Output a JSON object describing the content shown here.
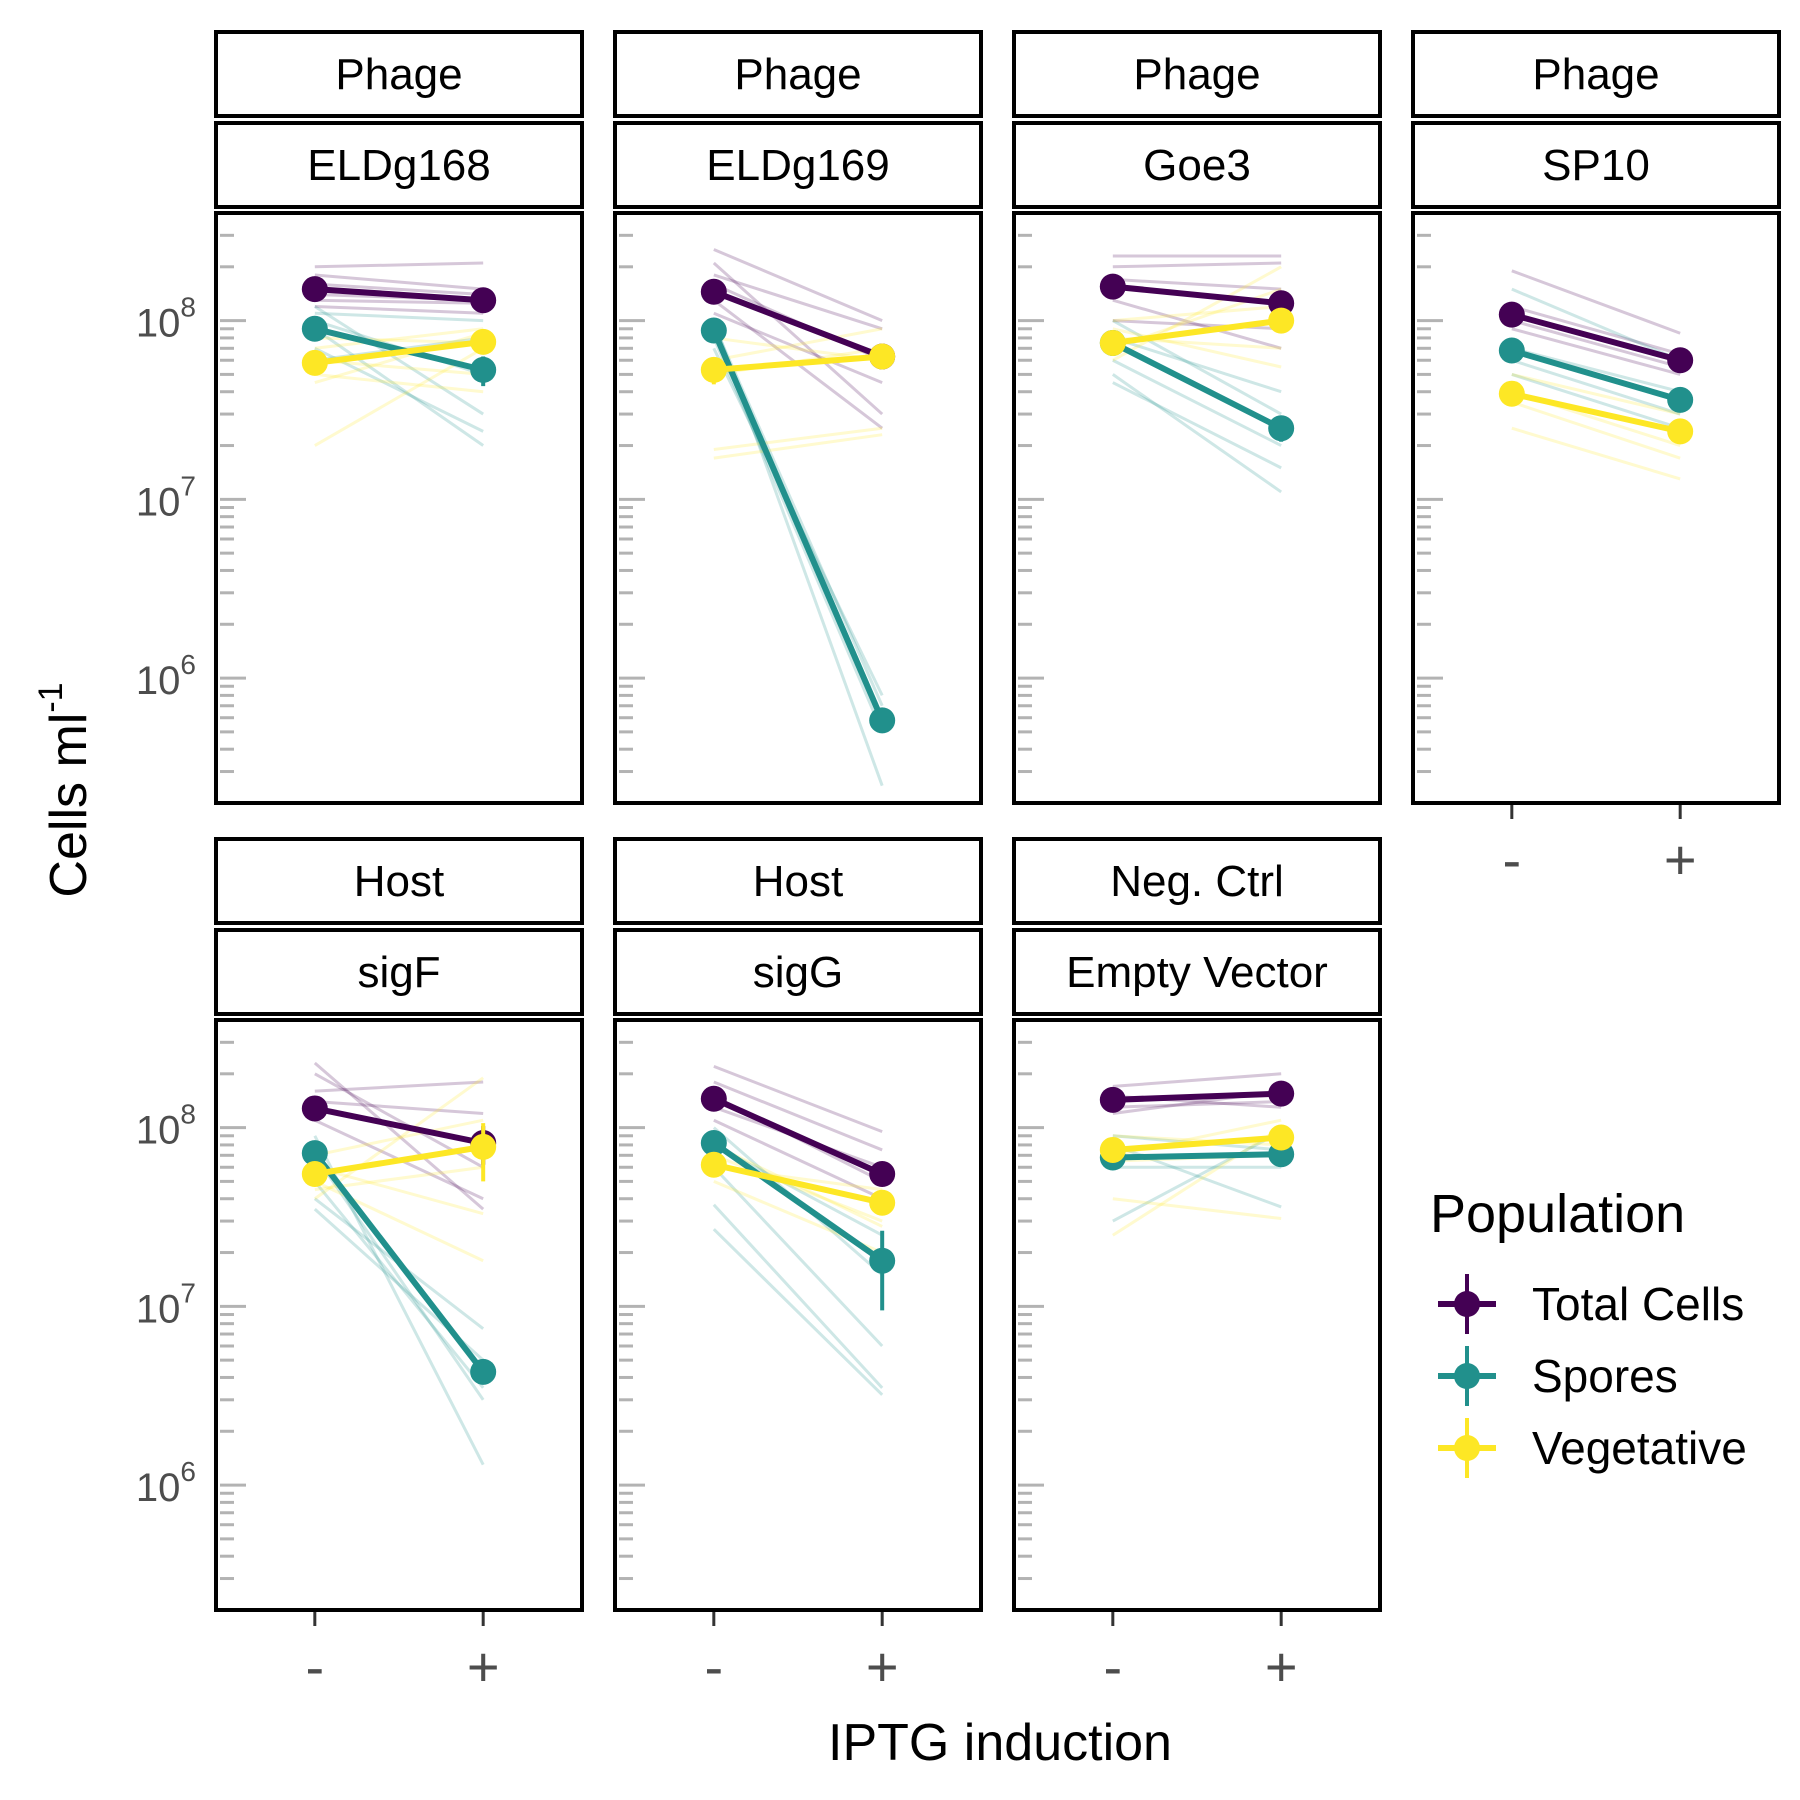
{
  "chart_data": {
    "type": "line",
    "y_scale": "log10",
    "ylim": [
      200000,
      400000000
    ],
    "y_ticks": [
      {
        "value": 1000000,
        "base": "10",
        "exp": "6"
      },
      {
        "value": 10000000,
        "base": "10",
        "exp": "7"
      },
      {
        "value": 100000000,
        "base": "10",
        "exp": "8"
      }
    ],
    "x_categories": [
      "-",
      "+"
    ],
    "xlabel": "IPTG induction",
    "ylabel": {
      "base": "Cells ml",
      "sup": "-1"
    },
    "legend": {
      "title": "Population",
      "position": "right",
      "entries": [
        {
          "name": "Total Cells",
          "color": "#440154"
        },
        {
          "name": "Spores",
          "color": "#21908C"
        },
        {
          "name": "Vegetative",
          "color": "#FDE725"
        }
      ]
    },
    "panels": [
      {
        "group": "Phage",
        "label": "ELDg168",
        "series": [
          {
            "name": "Total Cells",
            "values": [
              150000000,
              130000000
            ],
            "err": [
              0,
              0
            ]
          },
          {
            "name": "Spores",
            "values": [
              90000000,
              53000000
            ],
            "err": [
              0,
              10000000
            ]
          },
          {
            "name": "Vegetative",
            "values": [
              58000000,
              76000000
            ],
            "err": [
              0,
              8000000
            ]
          }
        ],
        "replicates": [
          {
            "series": "Total Cells",
            "lines": [
              [
                200000000,
                210000000
              ],
              [
                180000000,
                150000000
              ],
              [
                140000000,
                130000000
              ],
              [
                120000000,
                110000000
              ],
              [
                160000000,
                140000000
              ],
              [
                130000000,
                125000000
              ]
            ]
          },
          {
            "series": "Spores",
            "lines": [
              [
                120000000,
                30000000
              ],
              [
                90000000,
                20000000
              ],
              [
                70000000,
                24000000
              ],
              [
                100000000,
                50000000
              ],
              [
                110000000,
                100000000
              ],
              [
                60000000,
                80000000
              ]
            ]
          },
          {
            "series": "Vegetative",
            "lines": [
              [
                20000000,
                70000000
              ],
              [
                45000000,
                85000000
              ],
              [
                60000000,
                50000000
              ],
              [
                70000000,
                90000000
              ],
              [
                50000000,
                40000000
              ],
              [
                80000000,
                75000000
              ]
            ]
          }
        ]
      },
      {
        "group": "Phage",
        "label": "ELDg169",
        "series": [
          {
            "name": "Total Cells",
            "values": [
              145000000,
              63000000
            ],
            "err": [
              0,
              5000000
            ]
          },
          {
            "name": "Spores",
            "values": [
              88000000,
              580000
            ],
            "err": [
              0,
              0
            ]
          },
          {
            "name": "Vegetative",
            "values": [
              53000000,
              63000000
            ],
            "err": [
              9000000,
              4000000
            ]
          }
        ],
        "replicates": [
          {
            "series": "Total Cells",
            "lines": [
              [
                250000000,
                100000000
              ],
              [
                210000000,
                30000000
              ],
              [
                160000000,
                60000000
              ],
              [
                130000000,
                25000000
              ],
              [
                180000000,
                90000000
              ],
              [
                110000000,
                45000000
              ]
            ]
          },
          {
            "series": "Spores",
            "lines": [
              [
                100000000,
                250000
              ],
              [
                80000000,
                500000
              ],
              [
                95000000,
                700000
              ],
              [
                70000000,
                800000
              ],
              [
                90000000,
                600000
              ]
            ]
          },
          {
            "series": "Vegetative",
            "lines": [
              [
                19000000,
                25000000
              ],
              [
                17000000,
                23000000
              ],
              [
                60000000,
                90000000
              ],
              [
                50000000,
                70000000
              ],
              [
                80000000,
                60000000
              ]
            ]
          }
        ]
      },
      {
        "group": "Phage",
        "label": "Goe3",
        "series": [
          {
            "name": "Total Cells",
            "values": [
              155000000,
              125000000
            ],
            "err": [
              0,
              0
            ]
          },
          {
            "name": "Spores",
            "values": [
              75000000,
              25000000
            ],
            "err": [
              0,
              4000000
            ]
          },
          {
            "name": "Vegetative",
            "values": [
              75000000,
              100000000
            ],
            "err": [
              0,
              0
            ]
          }
        ],
        "replicates": [
          {
            "series": "Total Cells",
            "lines": [
              [
                230000000,
                230000000
              ],
              [
                200000000,
                210000000
              ],
              [
                130000000,
                70000000
              ],
              [
                100000000,
                90000000
              ],
              [
                170000000,
                150000000
              ]
            ]
          },
          {
            "series": "Spores",
            "lines": [
              [
                50000000,
                11000000
              ],
              [
                45000000,
                15000000
              ],
              [
                100000000,
                30000000
              ],
              [
                80000000,
                40000000
              ],
              [
                60000000,
                20000000
              ]
            ]
          },
          {
            "series": "Vegetative",
            "lines": [
              [
                60000000,
                200000000
              ],
              [
                70000000,
                150000000
              ],
              [
                90000000,
                55000000
              ],
              [
                80000000,
                70000000
              ],
              [
                100000000,
                120000000
              ]
            ]
          }
        ]
      },
      {
        "group": "Phage",
        "label": "SP10",
        "series": [
          {
            "name": "Total Cells",
            "values": [
              108000000,
              60000000
            ],
            "err": [
              0,
              0
            ]
          },
          {
            "name": "Spores",
            "values": [
              68000000,
              36000000
            ],
            "err": [
              0,
              0
            ]
          },
          {
            "name": "Vegetative",
            "values": [
              39000000,
              24000000
            ],
            "err": [
              0,
              0
            ]
          }
        ],
        "replicates": [
          {
            "series": "Total Cells",
            "lines": [
              [
                190000000,
                85000000
              ],
              [
                120000000,
                65000000
              ],
              [
                100000000,
                55000000
              ],
              [
                90000000,
                50000000
              ]
            ]
          },
          {
            "series": "Spores",
            "lines": [
              [
                150000000,
                60000000
              ],
              [
                70000000,
                40000000
              ],
              [
                60000000,
                30000000
              ],
              [
                50000000,
                25000000
              ]
            ]
          },
          {
            "series": "Vegetative",
            "lines": [
              [
                50000000,
                30000000
              ],
              [
                40000000,
                20000000
              ],
              [
                25000000,
                13000000
              ],
              [
                35000000,
                17000000
              ]
            ]
          }
        ]
      },
      {
        "group": "Host",
        "label": "sigF",
        "series": [
          {
            "name": "Total Cells",
            "values": [
              128000000,
              82000000
            ],
            "err": [
              0,
              20000000
            ]
          },
          {
            "name": "Spores",
            "values": [
              72000000,
              4300000
            ],
            "err": [
              0,
              0
            ]
          },
          {
            "name": "Vegetative",
            "values": [
              55000000,
              78000000
            ],
            "err": [
              0,
              28000000
            ]
          }
        ],
        "replicates": [
          {
            "series": "Total Cells",
            "lines": [
              [
                230000000,
                35000000
              ],
              [
                200000000,
                60000000
              ],
              [
                160000000,
                180000000
              ],
              [
                110000000,
                40000000
              ],
              [
                140000000,
                120000000
              ]
            ]
          },
          {
            "series": "Spores",
            "lines": [
              [
                90000000,
                1300000
              ],
              [
                50000000,
                3500000
              ],
              [
                40000000,
                7500000
              ],
              [
                35000000,
                5000000
              ],
              [
                70000000,
                3000000
              ]
            ]
          },
          {
            "series": "Vegetative",
            "lines": [
              [
                40000000,
                190000000
              ],
              [
                60000000,
                33000000
              ],
              [
                50000000,
                18000000
              ],
              [
                70000000,
                110000000
              ],
              [
                45000000,
                60000000
              ]
            ]
          }
        ]
      },
      {
        "group": "Host",
        "label": "sigG",
        "series": [
          {
            "name": "Total Cells",
            "values": [
              145000000,
              55000000
            ],
            "err": [
              0,
              0
            ]
          },
          {
            "name": "Spores",
            "values": [
              82000000,
              18000000
            ],
            "err": [
              0,
              8500000
            ]
          },
          {
            "name": "Vegetative",
            "values": [
              62000000,
              38000000
            ],
            "err": [
              0,
              0
            ]
          }
        ],
        "replicates": [
          {
            "series": "Total Cells",
            "lines": [
              [
                220000000,
                95000000
              ],
              [
                180000000,
                75000000
              ],
              [
                150000000,
                50000000
              ],
              [
                110000000,
                40000000
              ],
              [
                130000000,
                60000000
              ]
            ]
          },
          {
            "series": "Spores",
            "lines": [
              [
                27000000,
                3200000
              ],
              [
                37000000,
                3500000
              ],
              [
                60000000,
                6000000
              ],
              [
                100000000,
                15000000
              ],
              [
                80000000,
                25000000
              ]
            ]
          },
          {
            "series": "Vegetative",
            "lines": [
              [
                50000000,
                20000000
              ],
              [
                70000000,
                30000000
              ],
              [
                60000000,
                45000000
              ],
              [
                80000000,
                28000000
              ]
            ]
          }
        ]
      },
      {
        "group": "Neg. Ctrl",
        "label": "Empty Vector",
        "series": [
          {
            "name": "Total Cells",
            "values": [
              143000000,
              155000000
            ],
            "err": [
              0,
              0
            ]
          },
          {
            "name": "Spores",
            "values": [
              68000000,
              71000000
            ],
            "err": [
              0,
              0
            ]
          },
          {
            "name": "Vegetative",
            "values": [
              75000000,
              88000000
            ],
            "err": [
              0,
              0
            ]
          }
        ],
        "replicates": [
          {
            "series": "Total Cells",
            "lines": [
              [
                170000000,
                200000000
              ],
              [
                130000000,
                140000000
              ],
              [
                120000000,
                160000000
              ],
              [
                150000000,
                130000000
              ]
            ]
          },
          {
            "series": "Spores",
            "lines": [
              [
                30000000,
                95000000
              ],
              [
                80000000,
                36000000
              ],
              [
                60000000,
                60000000
              ],
              [
                90000000,
                75000000
              ]
            ]
          },
          {
            "series": "Vegetative",
            "lines": [
              [
                25000000,
                100000000
              ],
              [
                40000000,
                31000000
              ],
              [
                65000000,
                70000000
              ],
              [
                90000000,
                80000000
              ],
              [
                70000000,
                110000000
              ]
            ]
          }
        ]
      }
    ]
  }
}
